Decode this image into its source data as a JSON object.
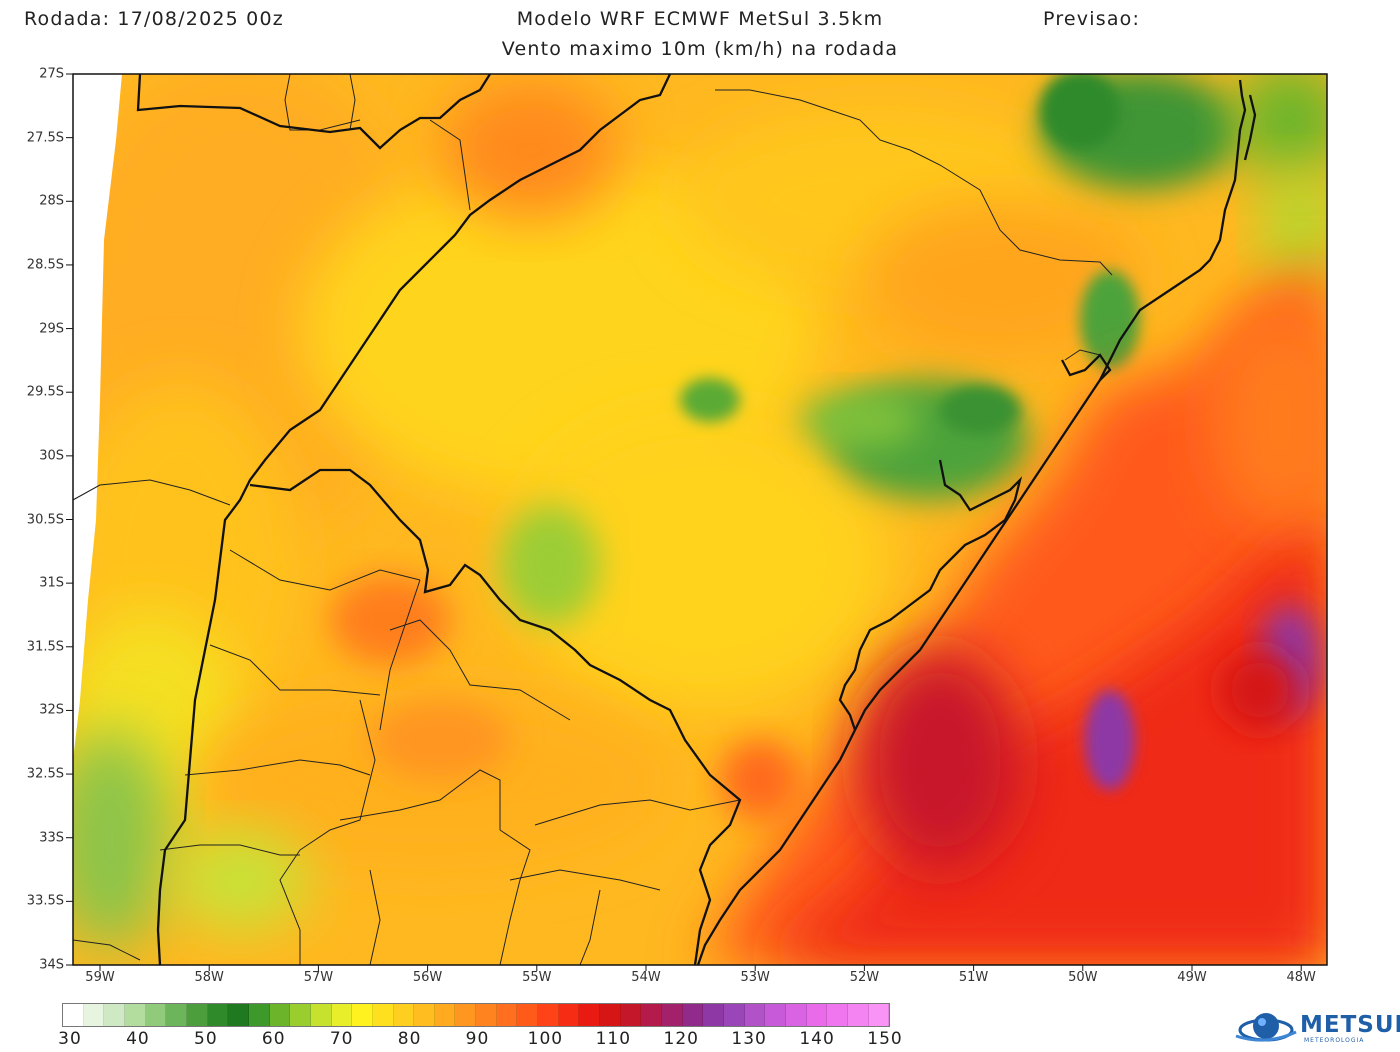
{
  "header": {
    "run": "Rodada: 17/08/2025 00z",
    "model": "Modelo WRF ECMWF MetSul 3.5km",
    "forecast": "Previsao:",
    "subtitle": "Vento maximo 10m (km/h) na rodada"
  },
  "lat_ticks": [
    "27S",
    "27.5S",
    "28S",
    "28.5S",
    "29S",
    "29.5S",
    "30S",
    "30.5S",
    "31S",
    "31.5S",
    "32S",
    "32.5S",
    "33S",
    "33.5S",
    "34S"
  ],
  "lon_ticks": [
    "59W",
    "58W",
    "57W",
    "56W",
    "55W",
    "54W",
    "53W",
    "52W",
    "51W",
    "50W",
    "49W",
    "48W"
  ],
  "colorbar": {
    "labels": [
      "30",
      "40",
      "50",
      "60",
      "70",
      "80",
      "90",
      "100",
      "110",
      "120",
      "130",
      "140",
      "150"
    ],
    "colors": [
      "#ffffff",
      "#e6f4e0",
      "#cfe9c4",
      "#b3dc9f",
      "#8fcb7a",
      "#6db55a",
      "#4c9e3d",
      "#2f8a2a",
      "#1f7a1f",
      "#3d9a2a",
      "#6cb52a",
      "#9acd2e",
      "#c6e22e",
      "#e8ef2a",
      "#fff21f",
      "#ffe01f",
      "#ffcf1f",
      "#ffbd1f",
      "#ffaa1f",
      "#ff961f",
      "#ff831f",
      "#ff6f1f",
      "#ff5a1a",
      "#ff4217",
      "#f72c14",
      "#e81a12",
      "#d51614",
      "#c5172a",
      "#b51b4a",
      "#a3206a",
      "#912a8a",
      "#8e38a5",
      "#9a46b9",
      "#b152c9",
      "#c65ad8",
      "#d963e3",
      "#e96be9",
      "#f076ef",
      "#f584f3",
      "#f993f6"
    ]
  },
  "logo": {
    "name": "METSUL",
    "sub": "METEOROLOGIA"
  }
}
